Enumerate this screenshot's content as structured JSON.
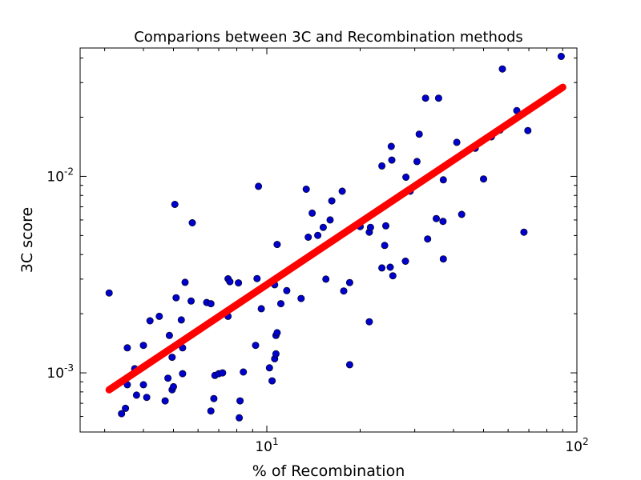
{
  "chart_data": {
    "type": "scatter",
    "title": "Comparions between 3C and Recombination methods",
    "xlabel": "% of Recombination",
    "ylabel": "3C score",
    "xscale": "log",
    "yscale": "log",
    "xlim": [
      2.5,
      100
    ],
    "ylim": [
      0.0005,
      0.045
    ],
    "grid": false,
    "x_ticks": [
      {
        "value": 10,
        "base": "10",
        "exp": "1"
      },
      {
        "value": 100,
        "base": "10",
        "exp": "2"
      }
    ],
    "y_ticks": [
      {
        "value": 0.001,
        "base": "10",
        "exp": "-3"
      },
      {
        "value": 0.01,
        "base": "10",
        "exp": "-2"
      }
    ],
    "colors": {
      "points": "#0000cc",
      "fit_line": "#ff0000",
      "axes": "#000000"
    },
    "series": [
      {
        "type": "scatter",
        "points": [
          [
            3.1,
            0.00255
          ],
          [
            3.4,
            0.00062
          ],
          [
            3.5,
            0.00066
          ],
          [
            3.55,
            0.00134
          ],
          [
            3.55,
            0.00087
          ],
          [
            3.75,
            0.00105
          ],
          [
            3.8,
            0.00077
          ],
          [
            4.0,
            0.00087
          ],
          [
            4.0,
            0.00138
          ],
          [
            4.1,
            0.00075
          ],
          [
            4.2,
            0.00184
          ],
          [
            4.5,
            0.00194
          ],
          [
            4.7,
            0.00072
          ],
          [
            4.8,
            0.00094
          ],
          [
            4.85,
            0.00155
          ],
          [
            4.95,
            0.00082
          ],
          [
            5.0,
            0.00085
          ],
          [
            4.95,
            0.0012
          ],
          [
            5.05,
            0.0072
          ],
          [
            5.1,
            0.00241
          ],
          [
            5.3,
            0.00186
          ],
          [
            5.35,
            0.00134
          ],
          [
            5.35,
            0.00099
          ],
          [
            5.45,
            0.00289
          ],
          [
            5.7,
            0.00232
          ],
          [
            5.75,
            0.0058
          ],
          [
            6.4,
            0.00228
          ],
          [
            6.6,
            0.00225
          ],
          [
            6.6,
            0.00064
          ],
          [
            6.75,
            0.00074
          ],
          [
            6.8,
            0.00097
          ],
          [
            7.0,
            0.00099
          ],
          [
            7.2,
            0.001
          ],
          [
            7.5,
            0.00194
          ],
          [
            7.5,
            0.00301
          ],
          [
            7.6,
            0.00291
          ],
          [
            8.1,
            0.00287
          ],
          [
            8.15,
            0.00059
          ],
          [
            8.2,
            0.00072
          ],
          [
            8.4,
            0.00101
          ],
          [
            9.2,
            0.00138
          ],
          [
            9.3,
            0.00302
          ],
          [
            9.4,
            0.0089
          ],
          [
            9.6,
            0.00212
          ],
          [
            10.2,
            0.00106
          ],
          [
            10.4,
            0.00091
          ],
          [
            10.6,
            0.00118
          ],
          [
            10.7,
            0.00155
          ],
          [
            10.7,
            0.00125
          ],
          [
            10.8,
            0.0016
          ],
          [
            10.6,
            0.00281
          ],
          [
            10.8,
            0.0045
          ],
          [
            11.1,
            0.00225
          ],
          [
            11.6,
            0.00262
          ],
          [
            12.9,
            0.00239
          ],
          [
            13.4,
            0.0086
          ],
          [
            13.6,
            0.0049
          ],
          [
            14.0,
            0.0065
          ],
          [
            14.6,
            0.00501
          ],
          [
            15.2,
            0.0055
          ],
          [
            15.5,
            0.003
          ],
          [
            16.0,
            0.006
          ],
          [
            16.2,
            0.0075
          ],
          [
            17.5,
            0.0084
          ],
          [
            17.7,
            0.00261
          ],
          [
            18.5,
            0.00288
          ],
          [
            18.5,
            0.0011
          ],
          [
            20.0,
            0.00555
          ],
          [
            21.4,
            0.00182
          ],
          [
            21.4,
            0.0052
          ],
          [
            21.6,
            0.0055
          ],
          [
            23.5,
            0.00342
          ],
          [
            23.5,
            0.0113
          ],
          [
            24.0,
            0.00445
          ],
          [
            24.2,
            0.0056
          ],
          [
            25.0,
            0.00345
          ],
          [
            25.2,
            0.0142
          ],
          [
            25.3,
            0.0121
          ],
          [
            25.5,
            0.00312
          ],
          [
            28.0,
            0.0037
          ],
          [
            28.1,
            0.0099
          ],
          [
            29.0,
            0.0084
          ],
          [
            30.5,
            0.0119
          ],
          [
            31.0,
            0.0164
          ],
          [
            32.5,
            0.025
          ],
          [
            33.0,
            0.0048
          ],
          [
            35.2,
            0.0061
          ],
          [
            35.8,
            0.025
          ],
          [
            37.0,
            0.0059
          ],
          [
            37.1,
            0.0038
          ],
          [
            37.1,
            0.0096
          ],
          [
            41.0,
            0.0149
          ],
          [
            42.5,
            0.0064
          ],
          [
            47.0,
            0.0139
          ],
          [
            50.0,
            0.0097
          ],
          [
            53.0,
            0.0159
          ],
          [
            56.5,
            0.0172
          ],
          [
            57.5,
            0.0352
          ],
          [
            64.0,
            0.0216
          ],
          [
            67.5,
            0.0052
          ],
          [
            69.5,
            0.0171
          ],
          [
            89.0,
            0.0408
          ]
        ]
      },
      {
        "type": "line",
        "x": [
          3.1,
          90.0
        ],
        "y": [
          0.00082,
          0.0284
        ]
      }
    ]
  }
}
